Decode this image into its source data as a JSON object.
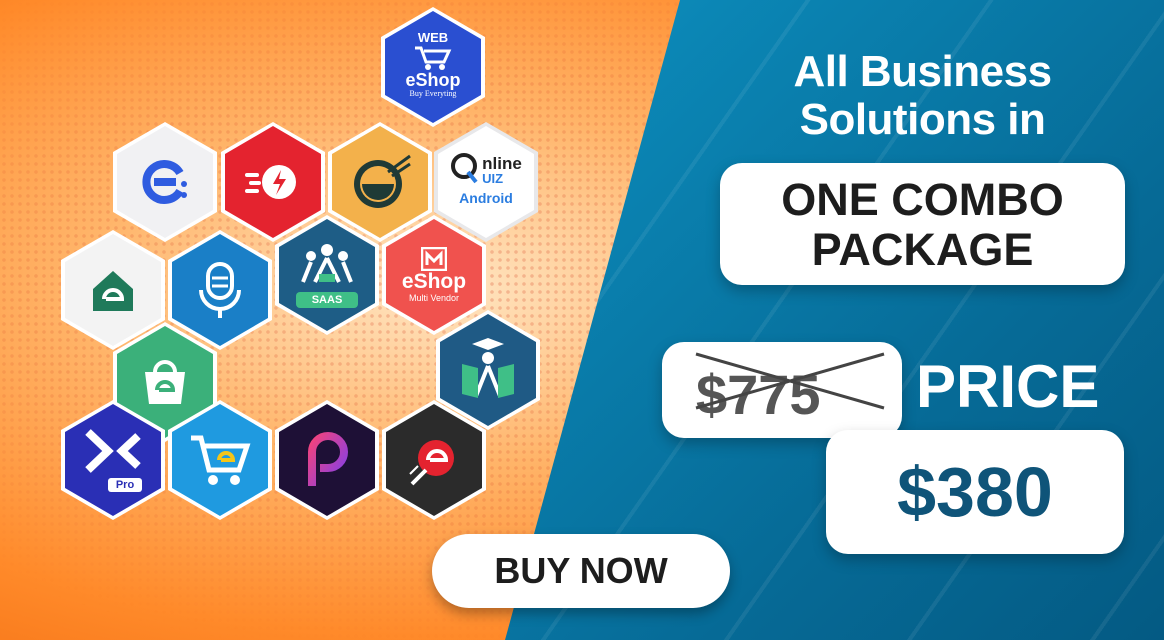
{
  "headline": {
    "line1": "All Business",
    "line2": "Solutions in"
  },
  "combo": {
    "line1": "ONE COMBO",
    "line2": "PACKAGE"
  },
  "pricing": {
    "old_price": "$775",
    "price_label": "PRICE",
    "new_price": "$380"
  },
  "cta": {
    "label": "BUY NOW"
  },
  "apps": {
    "web_eshop": {
      "top": "WEB",
      "name": "eShop",
      "tagline": "Buy Everyting"
    },
    "online_quiz": {
      "word1": "nline",
      "word2": "UIZ",
      "platform": "Android"
    },
    "eshop_multivendor": {
      "name": "eShop",
      "tagline": "Multi Vendor"
    },
    "saas": {
      "label": "SAAS"
    },
    "pro": {
      "label": "Pro"
    }
  },
  "colors": {
    "orange": "#ff8a2a",
    "blue": "#0b86b5",
    "navy": "#0f5479"
  }
}
